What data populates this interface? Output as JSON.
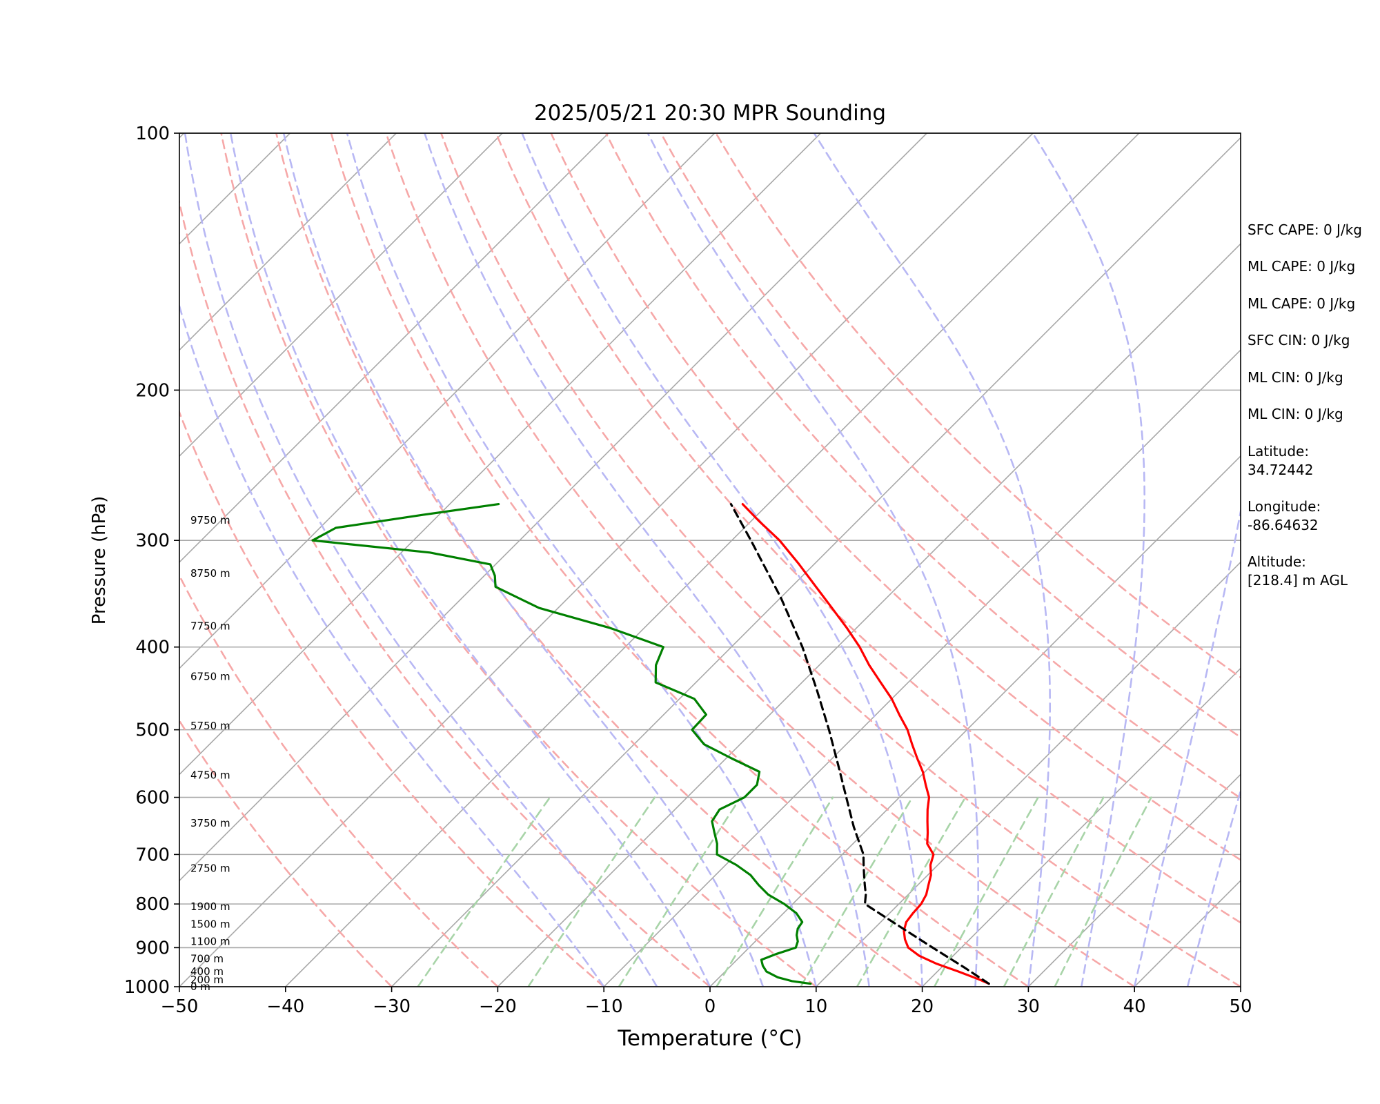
{
  "chart_data": {
    "type": "line",
    "title": "2025/05/21 20:30 MPR Sounding",
    "xlabel": "Temperature (°C)",
    "ylabel": "Pressure (hPa)",
    "xlim": [
      -50,
      50
    ],
    "ylim": [
      1000,
      100
    ],
    "y_scale": "log",
    "x_ticks": [
      -50,
      -40,
      -30,
      -20,
      -10,
      0,
      10,
      20,
      30,
      40,
      50
    ],
    "x_tick_labels": [
      "−50",
      "−40",
      "−30",
      "−20",
      "−10",
      "0",
      "10",
      "20",
      "30",
      "40",
      "50"
    ],
    "y_ticks": [
      100,
      200,
      300,
      400,
      500,
      600,
      700,
      800,
      900,
      1000
    ],
    "y_tick_labels": [
      "100",
      "200",
      "300",
      "400",
      "500",
      "600",
      "700",
      "800",
      "900",
      "1000"
    ],
    "grid": true,
    "background_lines": {
      "isotherms_skewed": [
        -130,
        -120,
        -110,
        -100,
        -90,
        -80,
        -70,
        -60,
        -50,
        -40,
        -30,
        -20,
        -10,
        0,
        10,
        20,
        30,
        40,
        50
      ],
      "dry_adiabats_theta_C": [
        -30,
        -20,
        -10,
        0,
        10,
        20,
        30,
        40,
        50,
        60,
        70,
        80,
        90,
        100
      ],
      "moist_adiabats_start_C": [
        -10,
        -5,
        0,
        5,
        10,
        15,
        20,
        25,
        30,
        35,
        40,
        45
      ],
      "mixing_ratio_lines_g_per_kg": [
        0.4,
        1,
        2,
        4,
        7,
        10,
        16,
        24,
        32
      ]
    },
    "series": [
      {
        "color": "#ff0000",
        "pressure": [
          992,
          980,
          960,
          940,
          920,
          900,
          880,
          860,
          840,
          820,
          800,
          780,
          760,
          740,
          720,
          700,
          680,
          660,
          640,
          620,
          600,
          580,
          560,
          540,
          520,
          500,
          480,
          460,
          440,
          420,
          400,
          380,
          360,
          340,
          320,
          300,
          285,
          272
        ],
        "values": [
          26.0,
          24.6,
          22.0,
          19.2,
          16.8,
          15.0,
          13.9,
          13.0,
          12.4,
          12.2,
          12.1,
          11.7,
          11.0,
          10.3,
          9.3,
          8.6,
          7.0,
          6.0,
          4.9,
          3.8,
          2.8,
          1.3,
          -0.2,
          -2.0,
          -3.8,
          -5.6,
          -7.8,
          -10.0,
          -12.6,
          -15.3,
          -17.9,
          -20.9,
          -24.2,
          -27.7,
          -31.4,
          -35.5,
          -39.2,
          -42.4
        ]
      },
      {
        "color": "#008000",
        "pressure": [
          992,
          985,
          975,
          960,
          945,
          930,
          915,
          900,
          885,
          870,
          855,
          840,
          820,
          800,
          780,
          760,
          740,
          720,
          700,
          680,
          660,
          640,
          620,
          600,
          580,
          560,
          540,
          520,
          500,
          480,
          460,
          440,
          420,
          400,
          380,
          360,
          340,
          330,
          320,
          310,
          300,
          290,
          280,
          272
        ],
        "values": [
          9.2,
          7.2,
          5.5,
          3.9,
          3.0,
          2.3,
          3.2,
          4.4,
          4.0,
          3.3,
          2.8,
          2.6,
          1.2,
          -0.8,
          -3.2,
          -5.0,
          -6.7,
          -9.0,
          -11.8,
          -12.8,
          -14.1,
          -15.4,
          -15.8,
          -14.6,
          -14.6,
          -15.6,
          -19.5,
          -23.4,
          -25.9,
          -26.0,
          -28.6,
          -33.8,
          -35.4,
          -36.4,
          -43.2,
          -51.8,
          -57.9,
          -59.0,
          -60.5,
          -67.3,
          -79.5,
          -78.5,
          -71.5,
          -65.4
        ]
      },
      {
        "color": "#000000",
        "dashed": true,
        "pressure": [
          992,
          950,
          900,
          850,
          800,
          780,
          760,
          740,
          720,
          700,
          650,
          600,
          550,
          500,
          450,
          400,
          350,
          300,
          272
        ],
        "values": [
          26.0,
          22.2,
          17.3,
          12.2,
          6.8,
          6.0,
          5.0,
          4.0,
          3.0,
          2.0,
          -1.5,
          -5.0,
          -8.8,
          -13.0,
          -17.8,
          -23.3,
          -30.0,
          -38.2,
          -43.5
        ]
      }
    ],
    "height_annotations": [
      {
        "label": "0 m",
        "pressure": 1000
      },
      {
        "label": "200 m",
        "pressure": 982
      },
      {
        "label": "400 m",
        "pressure": 960
      },
      {
        "label": "700 m",
        "pressure": 927
      },
      {
        "label": "1100 m",
        "pressure": 885
      },
      {
        "label": "1500 m",
        "pressure": 845
      },
      {
        "label": "1900 m",
        "pressure": 806
      },
      {
        "label": "2750 m",
        "pressure": 727
      },
      {
        "label": "3750 m",
        "pressure": 643
      },
      {
        "label": "4750 m",
        "pressure": 565
      },
      {
        "label": "5750 m",
        "pressure": 495
      },
      {
        "label": "6750 m",
        "pressure": 433
      },
      {
        "label": "7750 m",
        "pressure": 378
      },
      {
        "label": "8750 m",
        "pressure": 328
      },
      {
        "label": "9750 m",
        "pressure": 284
      }
    ]
  },
  "stats": {
    "lines": [
      "SFC CAPE: 0 J/kg",
      "ML CAPE: 0 J/kg",
      "ML CAPE: 0 J/kg",
      "SFC CIN: 0 J/kg",
      "ML CIN: 0 J/kg",
      "ML CIN: 0 J/kg",
      "Latitude:",
      "34.72442",
      "Longitude:",
      "-86.64632",
      "Altitude:",
      "[218.4] m AGL"
    ]
  },
  "colors": {
    "temperature": "#ff0000",
    "dewpoint": "#008000",
    "parcel": "#000000",
    "isotherm": "#a8a8a8",
    "dry_adiabat": "#f6a8a8",
    "moist_adiabat": "#b8b8f4",
    "mixing_ratio": "#a8d4a8"
  }
}
